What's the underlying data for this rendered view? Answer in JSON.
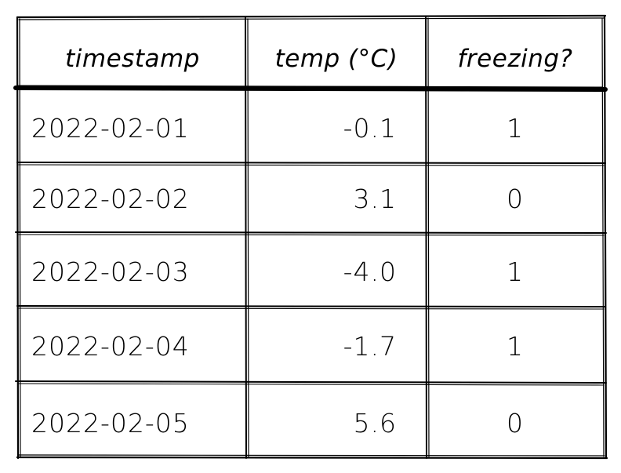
{
  "table": {
    "headers": [
      "timestamp",
      "temp (°C)",
      "freezing?"
    ],
    "rows": [
      [
        "2022-02-01",
        "-0.1",
        "1"
      ],
      [
        "2022-02-02",
        "3.1",
        "0"
      ],
      [
        "2022-02-03",
        "-4.0",
        "1"
      ],
      [
        "2022-02-04",
        "-1.7",
        "1"
      ],
      [
        "2022-02-05",
        "5.6",
        "0"
      ]
    ]
  }
}
